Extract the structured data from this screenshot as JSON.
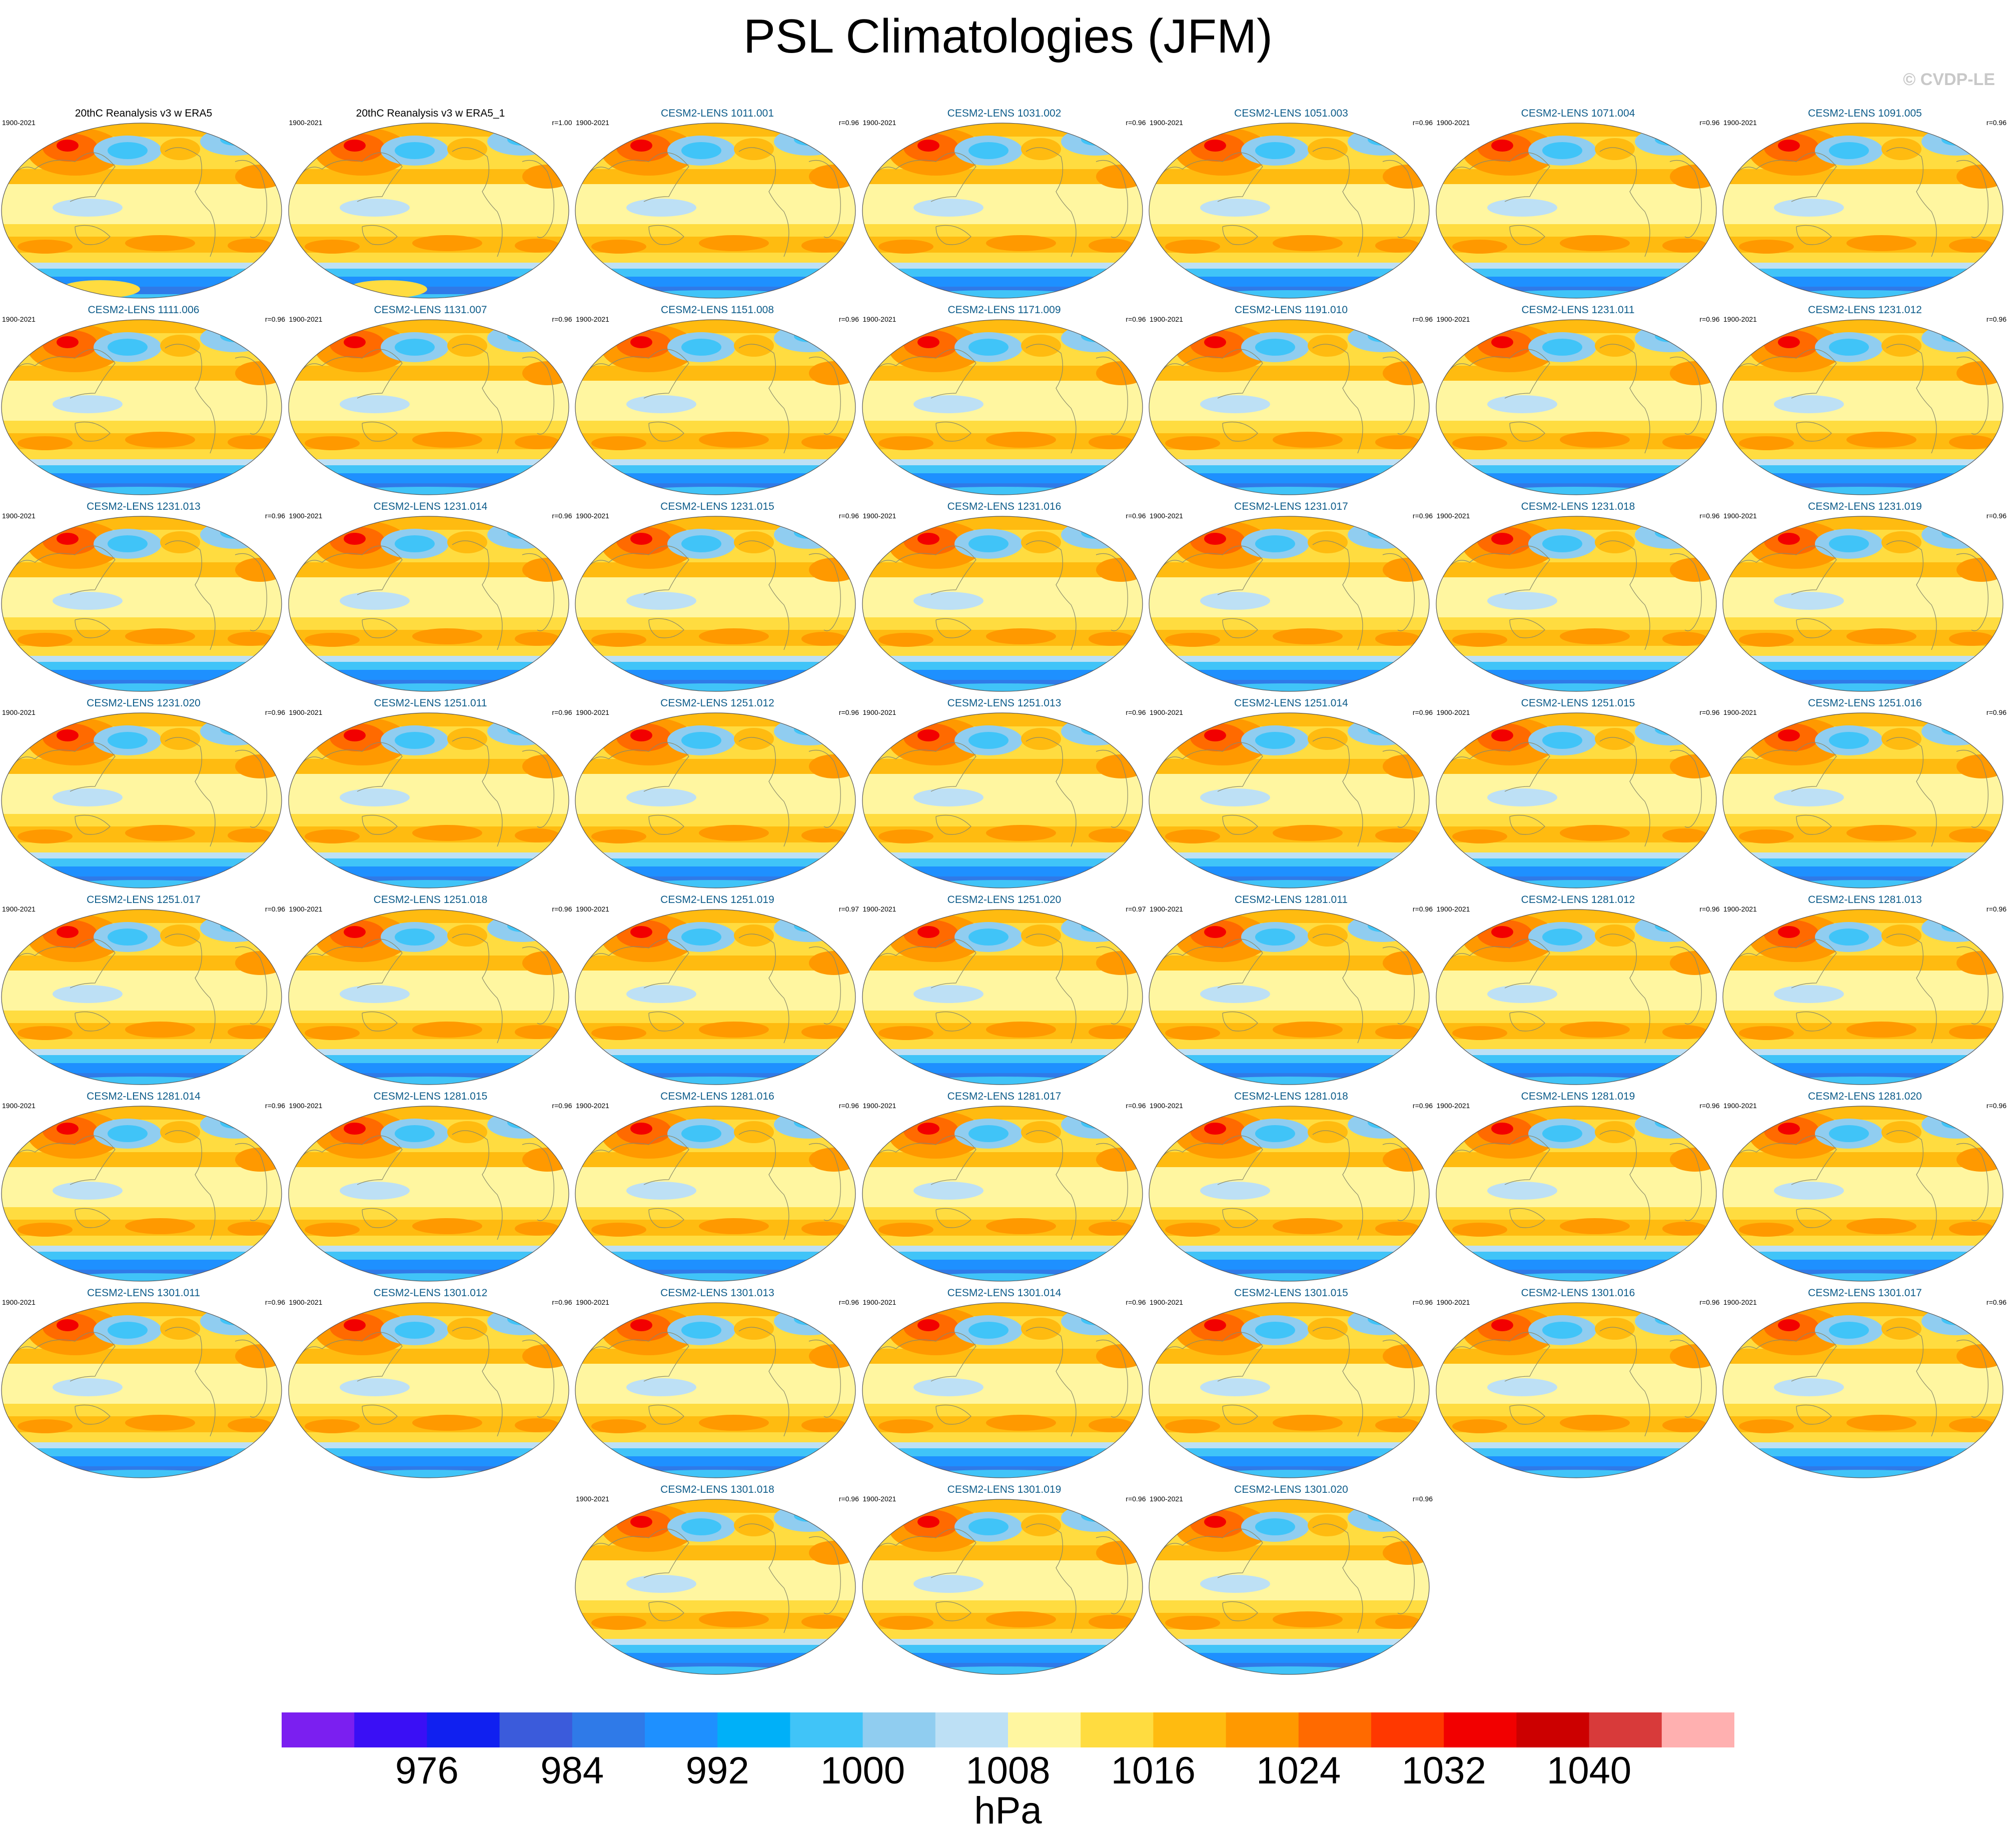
{
  "title": "PSL Climatologies (JFM)",
  "credit": "© CVDP-LE",
  "panel_years": "1900-2021",
  "panels": [
    {
      "title": "20thC Reanalysis v3 w ERA5",
      "corr": "",
      "kind": "obs"
    },
    {
      "title": "20thC Reanalysis v3 w ERA5_1",
      "corr": "r=1.00",
      "kind": "obs"
    },
    {
      "title": "CESM2-LENS 1011.001",
      "corr": "r=0.96"
    },
    {
      "title": "CESM2-LENS 1031.002",
      "corr": "r=0.96"
    },
    {
      "title": "CESM2-LENS 1051.003",
      "corr": "r=0.96"
    },
    {
      "title": "CESM2-LENS 1071.004",
      "corr": "r=0.96"
    },
    {
      "title": "CESM2-LENS 1091.005",
      "corr": "r=0.96"
    },
    {
      "title": "CESM2-LENS 1111.006",
      "corr": "r=0.96"
    },
    {
      "title": "CESM2-LENS 1131.007",
      "corr": "r=0.96"
    },
    {
      "title": "CESM2-LENS 1151.008",
      "corr": "r=0.96"
    },
    {
      "title": "CESM2-LENS 1171.009",
      "corr": "r=0.96"
    },
    {
      "title": "CESM2-LENS 1191.010",
      "corr": "r=0.96"
    },
    {
      "title": "CESM2-LENS 1231.011",
      "corr": "r=0.96"
    },
    {
      "title": "CESM2-LENS 1231.012",
      "corr": "r=0.96"
    },
    {
      "title": "CESM2-LENS 1231.013",
      "corr": "r=0.96"
    },
    {
      "title": "CESM2-LENS 1231.014",
      "corr": "r=0.96"
    },
    {
      "title": "CESM2-LENS 1231.015",
      "corr": "r=0.96"
    },
    {
      "title": "CESM2-LENS 1231.016",
      "corr": "r=0.96"
    },
    {
      "title": "CESM2-LENS 1231.017",
      "corr": "r=0.96"
    },
    {
      "title": "CESM2-LENS 1231.018",
      "corr": "r=0.96"
    },
    {
      "title": "CESM2-LENS 1231.019",
      "corr": "r=0.96"
    },
    {
      "title": "CESM2-LENS 1231.020",
      "corr": "r=0.96"
    },
    {
      "title": "CESM2-LENS 1251.011",
      "corr": "r=0.96"
    },
    {
      "title": "CESM2-LENS 1251.012",
      "corr": "r=0.96"
    },
    {
      "title": "CESM2-LENS 1251.013",
      "corr": "r=0.96"
    },
    {
      "title": "CESM2-LENS 1251.014",
      "corr": "r=0.96"
    },
    {
      "title": "CESM2-LENS 1251.015",
      "corr": "r=0.96"
    },
    {
      "title": "CESM2-LENS 1251.016",
      "corr": "r=0.96"
    },
    {
      "title": "CESM2-LENS 1251.017",
      "corr": "r=0.96"
    },
    {
      "title": "CESM2-LENS 1251.018",
      "corr": "r=0.96"
    },
    {
      "title": "CESM2-LENS 1251.019",
      "corr": "r=0.97"
    },
    {
      "title": "CESM2-LENS 1251.020",
      "corr": "r=0.97"
    },
    {
      "title": "CESM2-LENS 1281.011",
      "corr": "r=0.96"
    },
    {
      "title": "CESM2-LENS 1281.012",
      "corr": "r=0.96"
    },
    {
      "title": "CESM2-LENS 1281.013",
      "corr": "r=0.96"
    },
    {
      "title": "CESM2-LENS 1281.014",
      "corr": "r=0.96"
    },
    {
      "title": "CESM2-LENS 1281.015",
      "corr": "r=0.96"
    },
    {
      "title": "CESM2-LENS 1281.016",
      "corr": "r=0.96"
    },
    {
      "title": "CESM2-LENS 1281.017",
      "corr": "r=0.96"
    },
    {
      "title": "CESM2-LENS 1281.018",
      "corr": "r=0.96"
    },
    {
      "title": "CESM2-LENS 1281.019",
      "corr": "r=0.96"
    },
    {
      "title": "CESM2-LENS 1281.020",
      "corr": "r=0.96"
    },
    {
      "title": "CESM2-LENS 1301.011",
      "corr": "r=0.96"
    },
    {
      "title": "CESM2-LENS 1301.012",
      "corr": "r=0.96"
    },
    {
      "title": "CESM2-LENS 1301.013",
      "corr": "r=0.96"
    },
    {
      "title": "CESM2-LENS 1301.014",
      "corr": "r=0.96"
    },
    {
      "title": "CESM2-LENS 1301.015",
      "corr": "r=0.96"
    },
    {
      "title": "CESM2-LENS 1301.016",
      "corr": "r=0.96"
    },
    {
      "title": "CESM2-LENS 1301.017",
      "corr": "r=0.96"
    },
    {
      "title": "CESM2-LENS 1301.018",
      "corr": "r=0.96"
    },
    {
      "title": "CESM2-LENS 1301.019",
      "corr": "r=0.96"
    },
    {
      "title": "CESM2-LENS 1301.020",
      "corr": "r=0.96"
    }
  ],
  "colorbar": {
    "units": "hPa",
    "colors": [
      "#7b1ff0",
      "#3a0ff5",
      "#1020f0",
      "#3b5bdb",
      "#2f7ae8",
      "#1e90ff",
      "#00b0f8",
      "#40c4f8",
      "#90cdf0",
      "#bde0f5",
      "#fff6a0",
      "#ffdc40",
      "#ffbb10",
      "#ff9900",
      "#ff6a00",
      "#ff3800",
      "#f20000",
      "#cc0000",
      "#d83a3a",
      "#ffb0b0"
    ],
    "ticks": [
      "976",
      "984",
      "992",
      "1000",
      "1008",
      "1016",
      "1024",
      "1032",
      "1040"
    ]
  }
}
